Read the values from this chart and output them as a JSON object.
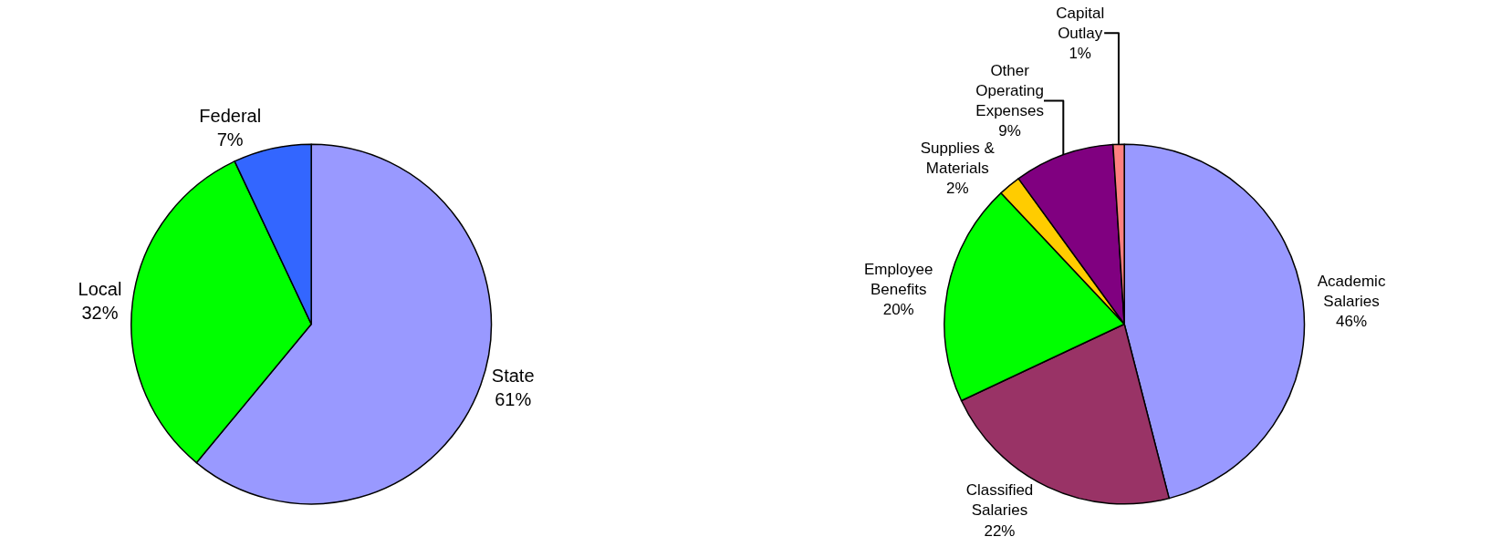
{
  "chart_data": [
    {
      "type": "pie",
      "categories": [
        "State",
        "Local",
        "Federal"
      ],
      "values": [
        61,
        32,
        7
      ],
      "value_labels": [
        "61%",
        "32%",
        "7%"
      ],
      "colors": [
        "#9999ff",
        "#00ff00",
        "#3366ff"
      ],
      "legend": false
    },
    {
      "type": "pie",
      "categories": [
        "Academic Salaries",
        "Classified Salaries",
        "Employee Benefits",
        "Supplies & Materials",
        "Other Operating Expenses",
        "Capital Outlay"
      ],
      "values": [
        46,
        22,
        20,
        2,
        9,
        1
      ],
      "value_labels": [
        "46%",
        "22%",
        "20%",
        "2%",
        "9%",
        "1%"
      ],
      "colors": [
        "#9999ff",
        "#993366",
        "#00ff00",
        "#ffcc00",
        "#800080",
        "#ff8080"
      ],
      "legend": false
    }
  ]
}
